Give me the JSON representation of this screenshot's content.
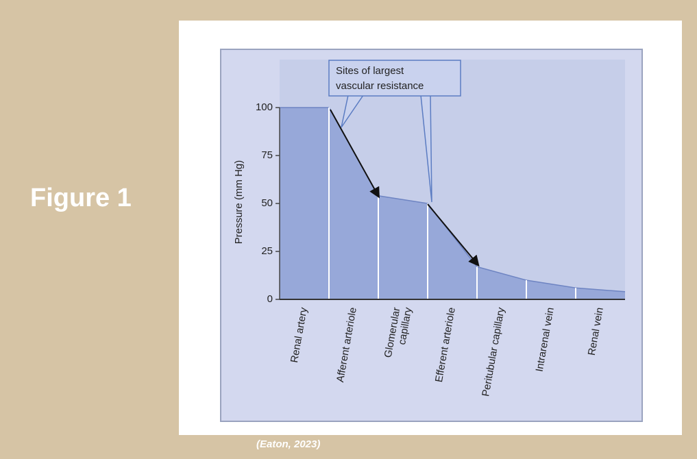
{
  "figure_title": "Figure 1",
  "caption": "(Eaton, 2023)",
  "chart_data": {
    "type": "area",
    "annotation": [
      "Sites of largest",
      "vascular resistance"
    ],
    "y_label": "Pressure (mm Hg)",
    "categories": [
      "Renal artery",
      "Afferent arteriole",
      [
        "Glomerular",
        "capillary"
      ],
      "Efferent arteriole",
      "Peritubular capillary",
      "Intrarenal vein",
      "Renal vein"
    ],
    "values": [
      [
        100,
        100
      ],
      [
        100,
        54
      ],
      [
        54,
        50
      ],
      [
        50,
        17
      ],
      [
        17,
        10
      ],
      [
        10,
        6
      ],
      [
        6,
        4
      ]
    ],
    "color": "#97a8d9",
    "ylim": [
      0,
      125
    ],
    "yticks": [
      0,
      25,
      50,
      75,
      100
    ]
  }
}
